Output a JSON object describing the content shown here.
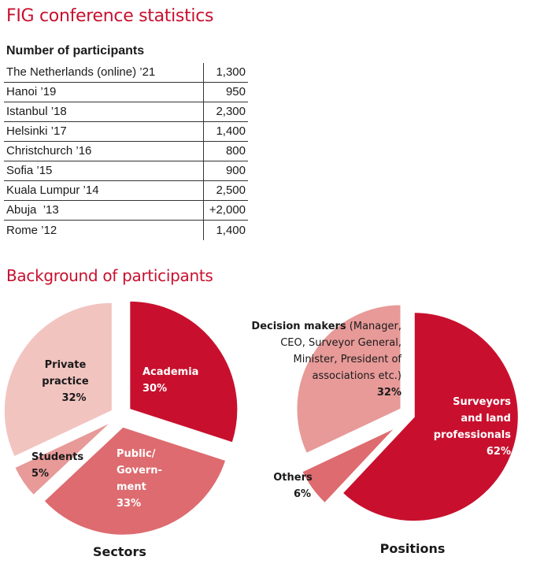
{
  "title": "FIG conference statistics",
  "table": {
    "heading": "Number of participants",
    "rows": [
      {
        "event": "The Netherlands (online) ’21",
        "participants": "1,300"
      },
      {
        "event": "Hanoi ’19",
        "participants": "950"
      },
      {
        "event": "Istanbul ’18",
        "participants": "2,300"
      },
      {
        "event": "Helsinki ’17",
        "participants": "1,400"
      },
      {
        "event": "Christchurch ’16",
        "participants": "800"
      },
      {
        "event": "Sofia ’15",
        "participants": "900"
      },
      {
        "event": "Kuala Lumpur ’14",
        "participants": "2,500"
      },
      {
        "event": "Abuja  ’13",
        "participants": "+2,000"
      },
      {
        "event": "Rome ’12",
        "participants": "1,400"
      }
    ]
  },
  "section_title": "Background of participants",
  "chart_data": [
    {
      "type": "pie",
      "title": "Sectors",
      "slices": [
        {
          "name": "Academia",
          "value": 30,
          "label_lines": [
            "Academia",
            "30%"
          ],
          "color": "#c8102e"
        },
        {
          "name": "Public/Government",
          "value": 33,
          "label_lines": [
            "Public/",
            "Govern-",
            "ment",
            "33%"
          ],
          "color": "#dd6b6f"
        },
        {
          "name": "Students",
          "value": 5,
          "label_lines": [
            "Students",
            "5%"
          ],
          "color": "#e79a98"
        },
        {
          "name": "Private practice",
          "value": 32,
          "label_lines": [
            "Private",
            "practice",
            "32%"
          ],
          "color": "#f2c4c0"
        }
      ]
    },
    {
      "type": "pie",
      "title": "Positions",
      "slices": [
        {
          "name": "Surveyors and land professionals",
          "value": 62,
          "label_lines": [
            "Surveyors",
            "and land",
            "professionals",
            "62%"
          ],
          "color": "#c8102e"
        },
        {
          "name": "Others",
          "value": 6,
          "label_lines": [
            "Others",
            "6%"
          ],
          "color": "#dd6b6f"
        },
        {
          "name": "Decision makers",
          "value": 32,
          "label_lines": [
            "Decision makers",
            "(Manager,",
            "CEO, Surveyor General,",
            "Minister, President of",
            "associations etc.)",
            "32%"
          ],
          "color": "#e79a98"
        }
      ]
    }
  ]
}
